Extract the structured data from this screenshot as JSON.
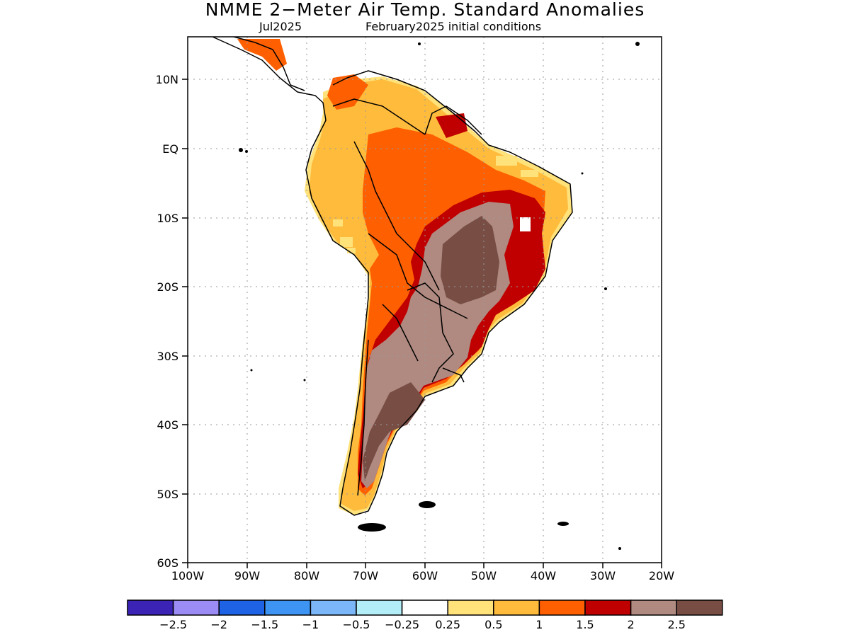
{
  "title": "NMME 2−Meter Air Temp. Standard Anomalies",
  "subtitle_left": "Jul2025",
  "subtitle_right": "February2025 initial conditions",
  "lat_labels": [
    "10N",
    "EQ",
    "10S",
    "20S",
    "30S",
    "40S",
    "50S",
    "60S"
  ],
  "lon_labels": [
    "100W",
    "90W",
    "80W",
    "70W",
    "60W",
    "50W",
    "40W",
    "30W",
    "20W"
  ],
  "colorbar": {
    "colors": [
      "#3a23b5",
      "#9b8cf5",
      "#1e62e6",
      "#3d94f2",
      "#7ab6f8",
      "#b3eef8",
      "#ffffff",
      "#ffe27a",
      "#ffbb3c",
      "#fe5f00",
      "#c00000",
      "#b08a80",
      "#774d44"
    ],
    "labels": [
      "−2.5",
      "−2",
      "−1.5",
      "−1",
      "−0.5",
      "−0.25",
      "0.25",
      "0.5",
      "1",
      "1.5",
      "2",
      "2.5"
    ]
  },
  "legend_colors": {
    "land_anomaly_1": "#ffbb3c",
    "land_anomaly_15": "#fe5f00",
    "land_anomaly_2": "#c00000",
    "land_anomaly_25": "#b08a80",
    "land_anomaly_3": "#774d44"
  }
}
